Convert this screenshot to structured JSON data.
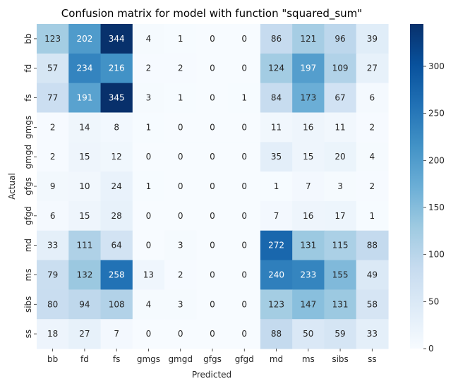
{
  "chart_data": {
    "type": "heatmap",
    "title": "Confusion matrix for model with function \"squared_sum\"",
    "xlabel": "Predicted",
    "ylabel": "Actual",
    "x_categories": [
      "bb",
      "fd",
      "fs",
      "gmgs",
      "gmgd",
      "gfgs",
      "gfgd",
      "md",
      "ms",
      "sibs",
      "ss"
    ],
    "y_categories": [
      "bb",
      "fd",
      "fs",
      "gmgs",
      "gmgd",
      "gfgs",
      "gfgd",
      "md",
      "ms",
      "sibs",
      "ss"
    ],
    "values": [
      [
        123,
        202,
        344,
        4,
        1,
        0,
        0,
        86,
        121,
        96,
        39
      ],
      [
        57,
        234,
        216,
        2,
        2,
        0,
        0,
        124,
        197,
        109,
        27
      ],
      [
        77,
        191,
        345,
        3,
        1,
        0,
        1,
        84,
        173,
        67,
        6
      ],
      [
        2,
        14,
        8,
        1,
        0,
        0,
        0,
        11,
        16,
        11,
        2
      ],
      [
        2,
        15,
        12,
        0,
        0,
        0,
        0,
        35,
        15,
        20,
        4
      ],
      [
        9,
        10,
        24,
        1,
        0,
        0,
        0,
        1,
        7,
        3,
        2
      ],
      [
        6,
        15,
        28,
        0,
        0,
        0,
        0,
        7,
        16,
        17,
        1
      ],
      [
        33,
        111,
        64,
        0,
        3,
        0,
        0,
        272,
        131,
        115,
        88
      ],
      [
        79,
        132,
        258,
        13,
        2,
        0,
        0,
        240,
        233,
        155,
        49
      ],
      [
        80,
        94,
        108,
        4,
        3,
        0,
        0,
        123,
        147,
        131,
        58
      ],
      [
        18,
        27,
        7,
        0,
        0,
        0,
        0,
        88,
        50,
        59,
        33
      ]
    ],
    "colormap": "Blues",
    "vmin": 0,
    "vmax": 345,
    "colorbar_ticks": [
      0,
      50,
      100,
      150,
      200,
      250,
      300
    ]
  }
}
